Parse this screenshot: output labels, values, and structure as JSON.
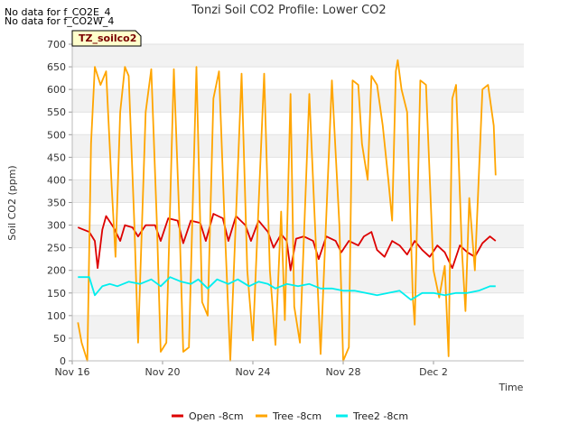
{
  "notes": [
    "No data for f_CO2E_4",
    "No data for f_CO2W_4"
  ],
  "badge": "TZ_soilco2",
  "chart_data": {
    "type": "line",
    "title": "Tonzi Soil CO2 Profile: Lower CO2",
    "xlabel": "Time",
    "ylabel": "Soil CO2 (ppm)",
    "ylim": [
      0,
      700
    ],
    "yticks": [
      0,
      50,
      100,
      150,
      200,
      250,
      300,
      350,
      400,
      450,
      500,
      550,
      600,
      650,
      700
    ],
    "xlim": [
      "2023-11-16",
      "2023-12-06"
    ],
    "xticks": [
      {
        "date": "2023-11-16",
        "label": "Nov 16"
      },
      {
        "date": "2023-11-20",
        "label": "Nov 20"
      },
      {
        "date": "2023-11-24",
        "label": "Nov 24"
      },
      {
        "date": "2023-11-28",
        "label": "Nov 28"
      },
      {
        "date": "2023-12-02",
        "label": "Dec 2"
      }
    ],
    "grid": "horizontal bands",
    "legend_position": "bottom",
    "series": [
      {
        "name": "Open -8cm",
        "color": "#dd0000",
        "points": [
          [
            "2023-11-16 06:00",
            295
          ],
          [
            "2023-11-16 18:00",
            285
          ],
          [
            "2023-11-17 00:00",
            265
          ],
          [
            "2023-11-17 03:00",
            205
          ],
          [
            "2023-11-17 08:00",
            290
          ],
          [
            "2023-11-17 12:00",
            320
          ],
          [
            "2023-11-17 20:00",
            295
          ],
          [
            "2023-11-18 03:00",
            265
          ],
          [
            "2023-11-18 08:00",
            300
          ],
          [
            "2023-11-18 16:00",
            295
          ],
          [
            "2023-11-18 22:00",
            275
          ],
          [
            "2023-11-19 06:00",
            300
          ],
          [
            "2023-11-19 16:00",
            300
          ],
          [
            "2023-11-19 22:00",
            265
          ],
          [
            "2023-11-20 06:00",
            315
          ],
          [
            "2023-11-20 16:00",
            310
          ],
          [
            "2023-11-20 22:00",
            260
          ],
          [
            "2023-11-21 06:00",
            310
          ],
          [
            "2023-11-21 16:00",
            305
          ],
          [
            "2023-11-21 22:00",
            265
          ],
          [
            "2023-11-22 06:00",
            325
          ],
          [
            "2023-11-22 16:00",
            315
          ],
          [
            "2023-11-22 22:00",
            265
          ],
          [
            "2023-11-23 06:00",
            320
          ],
          [
            "2023-11-23 16:00",
            300
          ],
          [
            "2023-11-23 22:00",
            265
          ],
          [
            "2023-11-24 06:00",
            310
          ],
          [
            "2023-11-24 16:00",
            285
          ],
          [
            "2023-11-24 22:00",
            250
          ],
          [
            "2023-11-25 06:00",
            280
          ],
          [
            "2023-11-25 12:00",
            265
          ],
          [
            "2023-11-25 16:00",
            200
          ],
          [
            "2023-11-25 22:00",
            270
          ],
          [
            "2023-11-26 06:00",
            275
          ],
          [
            "2023-11-26 16:00",
            265
          ],
          [
            "2023-11-26 22:00",
            225
          ],
          [
            "2023-11-27 06:00",
            275
          ],
          [
            "2023-11-27 16:00",
            265
          ],
          [
            "2023-11-27 22:00",
            240
          ],
          [
            "2023-11-28 06:00",
            265
          ],
          [
            "2023-11-28 16:00",
            255
          ],
          [
            "2023-11-28 22:00",
            275
          ],
          [
            "2023-11-29 06:00",
            285
          ],
          [
            "2023-11-29 12:00",
            245
          ],
          [
            "2023-11-29 20:00",
            230
          ],
          [
            "2023-11-30 04:00",
            265
          ],
          [
            "2023-11-30 12:00",
            255
          ],
          [
            "2023-11-30 20:00",
            235
          ],
          [
            "2023-12-01 04:00",
            265
          ],
          [
            "2023-12-01 12:00",
            245
          ],
          [
            "2023-12-01 20:00",
            230
          ],
          [
            "2023-12-02 04:00",
            255
          ],
          [
            "2023-12-02 12:00",
            240
          ],
          [
            "2023-12-02 20:00",
            205
          ],
          [
            "2023-12-03 04:00",
            255
          ],
          [
            "2023-12-03 12:00",
            240
          ],
          [
            "2023-12-03 20:00",
            230
          ],
          [
            "2023-12-04 04:00",
            260
          ],
          [
            "2023-12-04 12:00",
            275
          ],
          [
            "2023-12-04 18:00",
            265
          ]
        ]
      },
      {
        "name": "Tree -8cm",
        "color": "#ffa500",
        "points": [
          [
            "2023-11-16 06:00",
            85
          ],
          [
            "2023-11-16 10:00",
            40
          ],
          [
            "2023-11-16 16:00",
            0
          ],
          [
            "2023-11-16 20:00",
            480
          ],
          [
            "2023-11-17 00:00",
            650
          ],
          [
            "2023-11-17 06:00",
            610
          ],
          [
            "2023-11-17 12:00",
            640
          ],
          [
            "2023-11-17 18:00",
            380
          ],
          [
            "2023-11-17 22:00",
            230
          ],
          [
            "2023-11-18 03:00",
            550
          ],
          [
            "2023-11-18 08:00",
            650
          ],
          [
            "2023-11-18 12:00",
            630
          ],
          [
            "2023-11-18 18:00",
            300
          ],
          [
            "2023-11-18 22:00",
            40
          ],
          [
            "2023-11-19 06:00",
            550
          ],
          [
            "2023-11-19 12:00",
            645
          ],
          [
            "2023-11-19 18:00",
            300
          ],
          [
            "2023-11-19 22:00",
            20
          ],
          [
            "2023-11-20 04:00",
            40
          ],
          [
            "2023-11-20 12:00",
            645
          ],
          [
            "2023-11-20 18:00",
            300
          ],
          [
            "2023-11-20 22:00",
            20
          ],
          [
            "2023-11-21 04:00",
            30
          ],
          [
            "2023-11-21 12:00",
            650
          ],
          [
            "2023-11-21 18:00",
            130
          ],
          [
            "2023-11-22 00:00",
            100
          ],
          [
            "2023-11-22 06:00",
            580
          ],
          [
            "2023-11-22 12:00",
            640
          ],
          [
            "2023-11-22 18:00",
            300
          ],
          [
            "2023-11-23 00:00",
            0
          ],
          [
            "2023-11-23 12:00",
            635
          ],
          [
            "2023-11-23 18:00",
            200
          ],
          [
            "2023-11-24 00:00",
            45
          ],
          [
            "2023-11-24 12:00",
            635
          ],
          [
            "2023-11-24 18:00",
            200
          ],
          [
            "2023-11-25 00:00",
            35
          ],
          [
            "2023-11-25 06:00",
            330
          ],
          [
            "2023-11-25 10:00",
            90
          ],
          [
            "2023-11-25 16:00",
            590
          ],
          [
            "2023-11-25 20:00",
            120
          ],
          [
            "2023-11-26 02:00",
            40
          ],
          [
            "2023-11-26 12:00",
            590
          ],
          [
            "2023-11-26 18:00",
            300
          ],
          [
            "2023-11-27 00:00",
            15
          ],
          [
            "2023-11-27 12:00",
            620
          ],
          [
            "2023-11-27 20:00",
            300
          ],
          [
            "2023-11-28 00:00",
            0
          ],
          [
            "2023-11-28 06:00",
            30
          ],
          [
            "2023-11-28 10:00",
            620
          ],
          [
            "2023-11-28 16:00",
            610
          ],
          [
            "2023-11-28 20:00",
            480
          ],
          [
            "2023-11-29 02:00",
            400
          ],
          [
            "2023-11-29 06:00",
            630
          ],
          [
            "2023-11-29 12:00",
            610
          ],
          [
            "2023-11-29 18:00",
            520
          ],
          [
            "2023-11-30 00:00",
            400
          ],
          [
            "2023-11-30 04:00",
            310
          ],
          [
            "2023-11-30 08:00",
            640
          ],
          [
            "2023-11-30 10:00",
            665
          ],
          [
            "2023-11-30 14:00",
            600
          ],
          [
            "2023-11-30 20:00",
            550
          ],
          [
            "2023-12-01 02:00",
            140
          ],
          [
            "2023-12-01 04:00",
            80
          ],
          [
            "2023-12-01 10:00",
            620
          ],
          [
            "2023-12-01 16:00",
            610
          ],
          [
            "2023-12-02 00:00",
            200
          ],
          [
            "2023-12-02 06:00",
            140
          ],
          [
            "2023-12-02 12:00",
            210
          ],
          [
            "2023-12-02 16:00",
            10
          ],
          [
            "2023-12-02 20:00",
            580
          ],
          [
            "2023-12-03 00:00",
            610
          ],
          [
            "2023-12-03 06:00",
            250
          ],
          [
            "2023-12-03 10:00",
            110
          ],
          [
            "2023-12-03 14:00",
            360
          ],
          [
            "2023-12-03 20:00",
            200
          ],
          [
            "2023-12-04 04:00",
            600
          ],
          [
            "2023-12-04 10:00",
            610
          ],
          [
            "2023-12-04 16:00",
            520
          ],
          [
            "2023-12-04 18:00",
            410
          ]
        ]
      },
      {
        "name": "Tree2 -8cm",
        "color": "#00eeee",
        "points": [
          [
            "2023-11-16 06:00",
            185
          ],
          [
            "2023-11-16 18:00",
            185
          ],
          [
            "2023-11-17 00:00",
            145
          ],
          [
            "2023-11-17 08:00",
            165
          ],
          [
            "2023-11-17 16:00",
            170
          ],
          [
            "2023-11-18 00:00",
            165
          ],
          [
            "2023-11-18 12:00",
            175
          ],
          [
            "2023-11-19 00:00",
            170
          ],
          [
            "2023-11-19 12:00",
            180
          ],
          [
            "2023-11-19 22:00",
            165
          ],
          [
            "2023-11-20 08:00",
            185
          ],
          [
            "2023-11-20 20:00",
            175
          ],
          [
            "2023-11-21 06:00",
            170
          ],
          [
            "2023-11-21 14:00",
            180
          ],
          [
            "2023-11-22 00:00",
            160
          ],
          [
            "2023-11-22 10:00",
            180
          ],
          [
            "2023-11-22 22:00",
            170
          ],
          [
            "2023-11-23 08:00",
            180
          ],
          [
            "2023-11-23 20:00",
            165
          ],
          [
            "2023-11-24 06:00",
            175
          ],
          [
            "2023-11-24 16:00",
            170
          ],
          [
            "2023-11-25 00:00",
            160
          ],
          [
            "2023-11-25 12:00",
            170
          ],
          [
            "2023-11-26 00:00",
            165
          ],
          [
            "2023-11-26 12:00",
            170
          ],
          [
            "2023-11-27 00:00",
            160
          ],
          [
            "2023-11-27 12:00",
            160
          ],
          [
            "2023-11-28 00:00",
            155
          ],
          [
            "2023-11-28 12:00",
            155
          ],
          [
            "2023-11-29 00:00",
            150
          ],
          [
            "2023-11-29 12:00",
            145
          ],
          [
            "2023-11-30 00:00",
            150
          ],
          [
            "2023-11-30 12:00",
            155
          ],
          [
            "2023-12-01 00:00",
            135
          ],
          [
            "2023-12-01 12:00",
            150
          ],
          [
            "2023-12-02 00:00",
            150
          ],
          [
            "2023-12-02 12:00",
            145
          ],
          [
            "2023-12-03 00:00",
            150
          ],
          [
            "2023-12-03 12:00",
            150
          ],
          [
            "2023-12-04 00:00",
            155
          ],
          [
            "2023-12-04 12:00",
            165
          ],
          [
            "2023-12-04 18:00",
            165
          ]
        ]
      }
    ]
  }
}
